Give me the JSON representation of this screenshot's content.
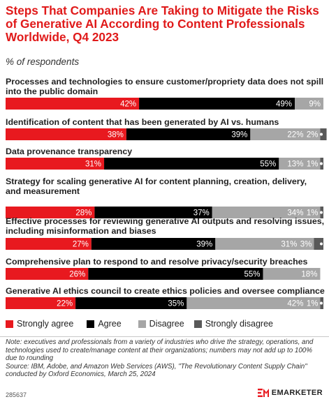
{
  "title": "Steps That Companies Are Taking to Mitigate the Risks of Generative AI According to Content Professionals Worldwide, Q4 2023",
  "subtitle": "% of respondents",
  "chart_data": {
    "type": "bar",
    "orientation": "horizontal",
    "stacked": true,
    "xlim": [
      0,
      100
    ],
    "grid": false,
    "legend_position": "bottom-left",
    "categories": [
      "Processes and technologies to ensure customer/propriety data does not spill into the public domain",
      "Identification of content that has been generated by AI vs. humans",
      "Data provenance transparency",
      "Strategy for scaling generative AI for content planning, creation, delivery, and measurement",
      "Effective processes for reviewing generative AI outputs and resolving issues, including misinformation and biases",
      "Comprehensive plan to respond to and resolve privacy/security breaches",
      "Generative AI ethics council to create ethics policies and oversee compliance"
    ],
    "series": [
      {
        "name": "Strongly agree",
        "color": "#e8191f",
        "values": [
          42,
          38,
          31,
          28,
          27,
          26,
          22
        ]
      },
      {
        "name": "Agree",
        "color": "#000000",
        "values": [
          49,
          39,
          55,
          37,
          39,
          55,
          35
        ]
      },
      {
        "name": "Disagree",
        "color": "#a6a6a6",
        "values": [
          9,
          22,
          13,
          34,
          31,
          18,
          42
        ]
      },
      {
        "name": "Strongly disagree",
        "color": "#595959",
        "values": [
          0,
          2,
          1,
          1,
          3,
          0,
          1
        ]
      }
    ],
    "value_labels": [
      [
        "42%",
        "49%",
        "9%",
        ""
      ],
      [
        "38%",
        "39%",
        "22%",
        "2%"
      ],
      [
        "31%",
        "55%",
        "13%",
        "1%"
      ],
      [
        "28%",
        "37%",
        "34%",
        "1%"
      ],
      [
        "27%",
        "39%",
        "31%",
        "3%"
      ],
      [
        "26%",
        "55%",
        "18%",
        ""
      ],
      [
        "22%",
        "35%",
        "42%",
        "1%"
      ]
    ]
  },
  "legend": [
    {
      "label": "Strongly agree",
      "color": "#e8191f"
    },
    {
      "label": "Agree",
      "color": "#000000"
    },
    {
      "label": "Disagree",
      "color": "#a6a6a6"
    },
    {
      "label": "Strongly disagree",
      "color": "#595959"
    }
  ],
  "note": "Note: executives and professionals from a variety of industries who drive the strategy, operations, and technologies used to create/manage content at their organizations; numbers may not add up to 100% due to rounding",
  "source": "Source: IBM, Adobe, and Amazon Web Services (AWS), \"The Revolutionary Content Supply Chain\" conducted by Oxford Economics, March 25, 2024",
  "chart_id": "285637",
  "brand": {
    "name": "EMARKETER",
    "color": "#e8191f"
  }
}
